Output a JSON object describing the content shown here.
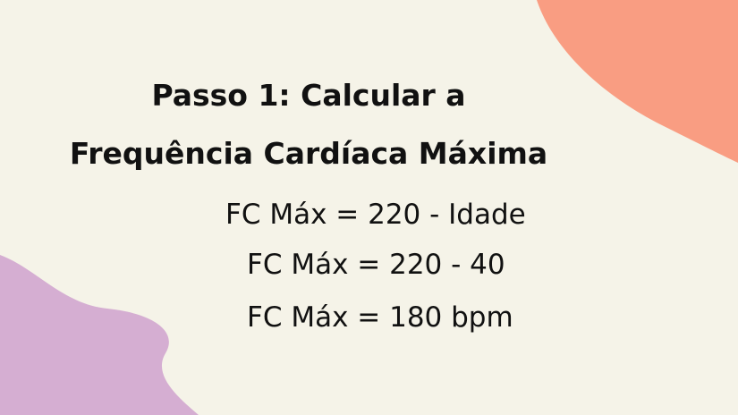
{
  "title_line1": "Passo 1: Calcular a",
  "title_line2": "Frequência Cardíaca Máxima",
  "formulas": [
    "FC Máx = 220 - Idade",
    "FC Máx = 220 - 40",
    "FC Máx = 180 bpm"
  ],
  "colors": {
    "background": "#f5f3e8",
    "coral_blob": "#f99d82",
    "purple_blob": "#d5aed2"
  }
}
